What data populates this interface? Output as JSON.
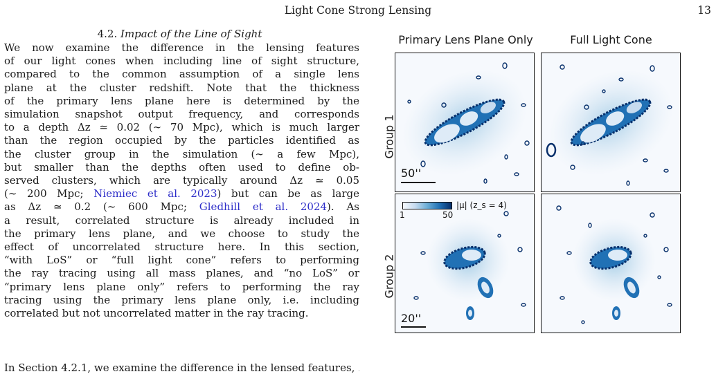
{
  "running_head": {
    "title": "Light Cone Strong Lensing",
    "page_number": "13"
  },
  "section": {
    "number": "4.2.",
    "title": "Impact of the Line of Sight"
  },
  "body_lines": [
    "We now examine the difference in the lensing features",
    "of our light cones when including line of sight structure,",
    "compared to the common assumption of a single lens",
    "plane at the cluster redshift.  Note that the thickness",
    "of the primary lens plane here is determined by the",
    "simulation snapshot output frequency, and corresponds",
    "to a depth Δz ≃ 0.02 (∼ 70 Mpc), which is much larger",
    "than the region occupied by the particles identified as",
    "the cluster group in the simulation (∼ a few Mpc),",
    "but smaller than the depths often used to define ob-",
    "served clusters, which are typically around Δz ≃ 0.05"
  ],
  "line_12": {
    "pre": "(∼ 200 Mpc; ",
    "cite": "Niemiec et al. 2023",
    "post": ") but can be as large"
  },
  "line_13": {
    "pre": "as Δz ≃ 0.2 (∼ 600 Mpc; ",
    "cite": "Gledhill et al. 2024",
    "post": ").  As"
  },
  "body_lines_2": [
    "a result, correlated structure is already included in",
    "the primary lens plane, and we choose to study the",
    "effect of uncorrelated structure here.  In this section,",
    "“with LoS” or “full light cone” refers to performing",
    "the ray tracing using all mass planes, and “no LoS” or",
    "“primary lens plane only” refers to performing the ray",
    "tracing using the primary lens plane only, i.e. including",
    "correlated but not uncorrelated matter in the ray tracing."
  ],
  "bottom_partial": "In Section 4.2.1, we examine the difference in the lensed features, ...",
  "figure": {
    "col_titles": [
      "Primary Lens Plane Only",
      "Full Light Cone"
    ],
    "row_labels": [
      "Group 1",
      "Group 2"
    ],
    "scalebars": [
      "50''",
      "20''"
    ],
    "colorbar": {
      "min": "1",
      "max": "50",
      "label": "|μ| (z_s = 4)"
    },
    "colormap": [
      "#f7fbff",
      "#c6dbef",
      "#6baed6",
      "#2171b5",
      "#08306b"
    ]
  }
}
